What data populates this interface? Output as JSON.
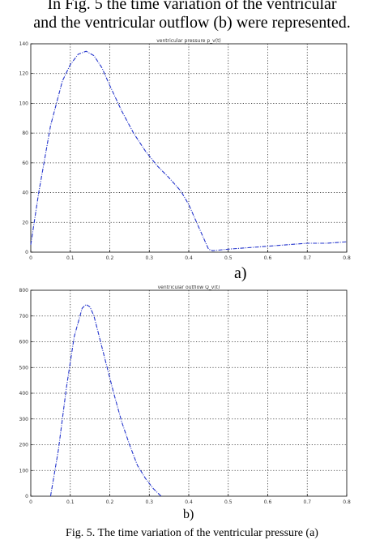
{
  "text": {
    "intro_line1": "In Fig. 5 the time variation of the ventricular",
    "intro_line2": "and the ventricular outflow (b) were represented.",
    "caption": "Fig. 5. The time variation of the ventricular pressure (a)"
  },
  "colors": {
    "curve": "#2233cc",
    "grid": "#222222",
    "axes": "#000000"
  },
  "chart_data": [
    {
      "type": "line",
      "panel_label": "a)",
      "title": "ventricular pressure p_v(t)",
      "xlim": [
        0,
        0.8
      ],
      "ylim": [
        0,
        140
      ],
      "xticks": [
        "0",
        "0.1",
        "0.2",
        "0.3",
        "0.4",
        "0.5",
        "0.6",
        "0.7",
        "0.8"
      ],
      "yticks": [
        "0",
        "20",
        "40",
        "60",
        "80",
        "100",
        "120",
        "140"
      ],
      "grid": true,
      "series": [
        {
          "x": [
            0,
            0.02,
            0.05,
            0.08,
            0.1,
            0.12,
            0.14,
            0.16,
            0.18,
            0.2,
            0.23,
            0.26,
            0.29,
            0.32,
            0.35,
            0.38,
            0.4,
            0.42,
            0.44,
            0.45,
            0.46,
            0.5,
            0.55,
            0.6,
            0.65,
            0.7,
            0.75,
            0.8
          ],
          "y": [
            5,
            40,
            85,
            115,
            126,
            133,
            135,
            132,
            124,
            112,
            95,
            80,
            68,
            58,
            50,
            41,
            32,
            20,
            8,
            2,
            1,
            2,
            3,
            4,
            5,
            6,
            6,
            7
          ]
        }
      ]
    },
    {
      "type": "line",
      "panel_label": "b)",
      "title": "ventricular outflow Q_v(t)",
      "xlim": [
        0,
        0.8
      ],
      "ylim": [
        0,
        800
      ],
      "xticks": [
        "0",
        "0.1",
        "0.2",
        "0.3",
        "0.4",
        "0.5",
        "0.6",
        "0.7",
        "0.8"
      ],
      "yticks": [
        "0",
        "100",
        "200",
        "300",
        "400",
        "500",
        "600",
        "700",
        "800"
      ],
      "grid": true,
      "series": [
        {
          "x": [
            0.05,
            0.07,
            0.09,
            0.11,
            0.13,
            0.14,
            0.15,
            0.16,
            0.17,
            0.19,
            0.21,
            0.23,
            0.25,
            0.27,
            0.29,
            0.31,
            0.33
          ],
          "y": [
            0,
            180,
            420,
            620,
            730,
            745,
            735,
            700,
            640,
            520,
            400,
            290,
            200,
            120,
            70,
            30,
            0
          ]
        }
      ]
    }
  ]
}
